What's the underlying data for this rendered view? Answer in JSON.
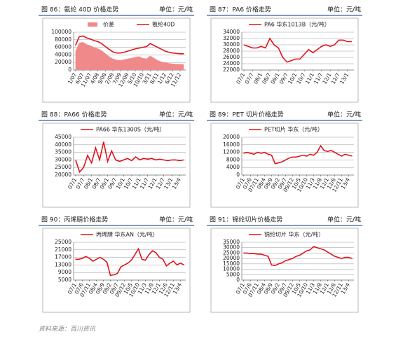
{
  "chart_data": [
    {
      "type": "line",
      "title": "图 86：氨纶 40D 价格走势",
      "unit": "单位：元/吨",
      "grid": true,
      "categories": [
        "1/07",
        null,
        "6/07",
        null,
        "11/07",
        null,
        "4/08",
        null,
        "9/08",
        null,
        "2/09",
        null,
        "7/09",
        null,
        "12/09",
        null,
        "5/10",
        null,
        "10/10",
        null,
        "3/11",
        null,
        "8/11",
        null,
        "1/12",
        null,
        "6/12",
        null,
        "11/12",
        null
      ],
      "series": [
        {
          "name": "价差",
          "color": "#f08a8a",
          "style": "area",
          "values": [
            50000,
            72000,
            74000,
            68000,
            65000,
            60000,
            57000,
            52000,
            44000,
            36000,
            30000,
            27000,
            26000,
            28000,
            30000,
            32000,
            34000,
            36000,
            32000,
            30000,
            38000,
            32000,
            26000,
            22000,
            20000,
            18000,
            17000,
            16000,
            16000,
            15000
          ]
        },
        {
          "name": "氨纶40D",
          "color": "#e0141e",
          "style": "line",
          "values": [
            65000,
            88000,
            90000,
            85000,
            82000,
            78000,
            75000,
            70000,
            62000,
            55000,
            48000,
            45000,
            45000,
            47000,
            50000,
            53000,
            56000,
            58000,
            60000,
            62000,
            70000,
            65000,
            60000,
            55000,
            50000,
            47000,
            45000,
            44000,
            43000,
            43000
          ]
        }
      ],
      "ylim": [
        0,
        100000
      ],
      "yticks": [
        0,
        20000,
        40000,
        60000,
        80000,
        100000
      ]
    },
    {
      "type": "line",
      "title": "图 87：PA6 价格走势",
      "unit": "单位：元/吨",
      "grid": true,
      "categories": [
        "07/1",
        null,
        "07/7",
        null,
        "08/1",
        null,
        "08/7",
        null,
        "09/1",
        null,
        "09/7",
        null,
        "10/1",
        null,
        "10/7",
        null,
        "11/1",
        null,
        "11/7",
        null,
        "12/1",
        null,
        "12/7",
        null,
        "13/1",
        null
      ],
      "series": [
        {
          "name": "PA6 华东1013B（元/吨）",
          "color": "#e0141e",
          "style": "line",
          "values": [
            30000,
            29500,
            29000,
            29000,
            29500,
            29000,
            32000,
            30000,
            29000,
            26000,
            24500,
            25000,
            25500,
            25500,
            27000,
            28500,
            27500,
            28500,
            29500,
            30000,
            29500,
            30000,
            31500,
            31500,
            31000,
            31000
          ]
        }
      ],
      "ylim": [
        22000,
        34000
      ],
      "yticks": [
        22000,
        24000,
        26000,
        28000,
        30000,
        32000,
        34000
      ]
    },
    {
      "type": "line",
      "title": "图 88：PA66 价格走势",
      "unit": "单位：元/吨",
      "grid": true,
      "categories": [
        "07/1",
        null,
        "07/7",
        null,
        "08/1",
        null,
        "08/7",
        null,
        "09/1",
        null,
        "09/7",
        null,
        "10/1",
        null,
        "10/7",
        null,
        "11/1",
        null,
        "11/7",
        null,
        "12/1",
        null,
        "12/7",
        null,
        "13/1",
        null,
        "13/4",
        null
      ],
      "series": [
        {
          "name": "PA66 华东1300S（元/吨）",
          "color": "#e0141e",
          "style": "line",
          "values": [
            30000,
            22000,
            25000,
            33000,
            28000,
            38000,
            30000,
            42000,
            29000,
            36000,
            30000,
            29000,
            30000,
            31000,
            29500,
            32000,
            30000,
            31000,
            30500,
            31000,
            30000,
            30500,
            30000,
            29500,
            30000,
            30000,
            29500,
            30000
          ]
        }
      ],
      "ylim": [
        20000,
        45000
      ],
      "yticks": [
        20000,
        25000,
        30000,
        35000,
        40000,
        45000
      ]
    },
    {
      "type": "line",
      "title": "图 89：PET 切片价格走势",
      "unit": "单位：元/吨",
      "grid": true,
      "categories": [
        "07/1",
        null,
        "07/6",
        null,
        "07/11",
        null,
        "08/4",
        null,
        "08/9",
        null,
        "09/2",
        null,
        "09/7",
        null,
        "09/12",
        null,
        "10/5",
        null,
        "10/10",
        null,
        "11/3",
        null,
        "11/8",
        null,
        "12/1",
        null,
        "12/6",
        null,
        "12/11",
        null,
        "13/4",
        null
      ],
      "series": [
        {
          "name": "PET切片 华东（元/吨）",
          "color": "#e0141e",
          "style": "line",
          "values": [
            11500,
            12000,
            11500,
            11000,
            12000,
            11500,
            12000,
            11000,
            10500,
            6000,
            6500,
            7000,
            8000,
            9000,
            9500,
            9500,
            10000,
            10500,
            10000,
            11000,
            10500,
            12000,
            15500,
            13000,
            12500,
            13000,
            12000,
            11000,
            10000,
            11000,
            10500,
            10000
          ]
        }
      ],
      "ylim": [
        0,
        20000
      ],
      "yticks": [
        0,
        4000,
        8000,
        12000,
        16000,
        20000
      ]
    },
    {
      "type": "line",
      "title": "图 90：丙烯腈价格走势",
      "unit": "单位：元/吨",
      "grid": true,
      "categories": [
        "07/1",
        null,
        "07/6",
        null,
        "07/11",
        null,
        "08/4",
        null,
        "08/9",
        null,
        "09/2",
        null,
        "09/7",
        null,
        "09/12",
        null,
        "10/5",
        null,
        "10/10",
        null,
        "11/3",
        null,
        "11/8",
        null,
        "12/1",
        null,
        "12/6",
        null,
        "12/11",
        null,
        "13/4",
        null
      ],
      "series": [
        {
          "name": "丙烯腈 华东AN（元/吨）",
          "color": "#e0141e",
          "style": "line",
          "values": [
            16000,
            16000,
            16500,
            17500,
            16500,
            15000,
            16000,
            17000,
            16000,
            14500,
            7500,
            7800,
            8500,
            12000,
            13000,
            14000,
            15500,
            18500,
            21500,
            16000,
            15500,
            18500,
            20500,
            19500,
            17000,
            16000,
            12500,
            14000,
            15000,
            13000,
            14000,
            13000
          ]
        }
      ],
      "ylim": [
        5000,
        25000
      ],
      "yticks": [
        5000,
        9000,
        13000,
        17000,
        21000,
        25000
      ]
    },
    {
      "type": "line",
      "title": "图 91：锦纶切片价格走势",
      "unit": "单位：元/吨",
      "grid": true,
      "categories": [
        "07/1",
        null,
        "07/6",
        null,
        "07/11",
        null,
        "08/4",
        null,
        "08/9",
        null,
        "09/2",
        null,
        "09/7",
        null,
        "09/12",
        null,
        "10/5",
        null,
        "10/10",
        null,
        "11/3",
        null,
        "11/8",
        null,
        "12/1",
        null,
        "12/6",
        null,
        "12/11",
        null,
        "13/4",
        null
      ],
      "series": [
        {
          "name": "锦纶切片 华东（元/吨）",
          "color": "#e0141e",
          "style": "line",
          "values": [
            25000,
            25000,
            24500,
            24500,
            24000,
            24000,
            23000,
            22000,
            14000,
            13500,
            15000,
            16000,
            18000,
            19000,
            20000,
            22000,
            23000,
            25000,
            27000,
            28000,
            31000,
            30000,
            29000,
            28000,
            26000,
            24000,
            22000,
            21000,
            20000,
            21000,
            21000,
            20000
          ]
        }
      ],
      "ylim": [
        0,
        35000
      ],
      "yticks": [
        0,
        5000,
        10000,
        15000,
        20000,
        25000,
        30000,
        35000
      ]
    }
  ],
  "source": "资料来源：百川资讯"
}
